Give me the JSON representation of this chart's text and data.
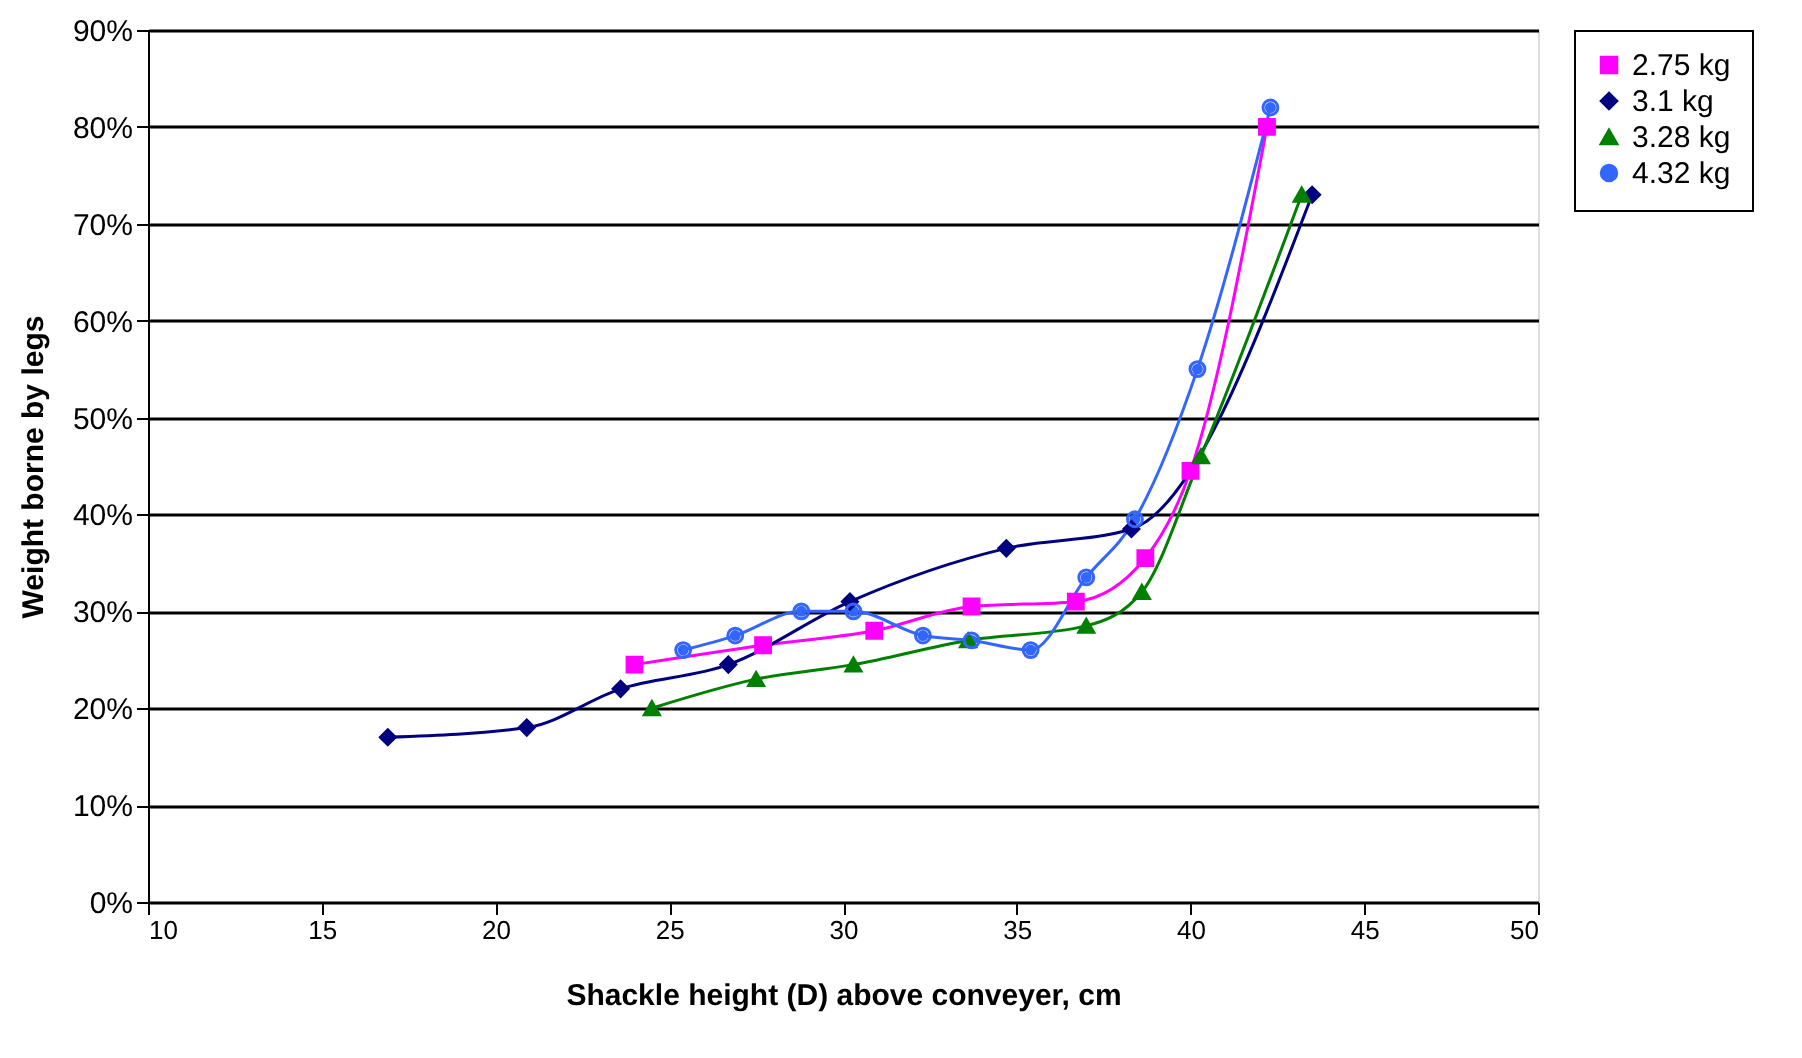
{
  "chart_data": {
    "type": "line",
    "xlabel": "Shackle height (D) above conveyer, cm",
    "ylabel": "Weight borne by legs",
    "xlim": [
      10,
      50
    ],
    "xticks": [
      10,
      15,
      20,
      25,
      30,
      35,
      40,
      45,
      50
    ],
    "ylim": [
      0,
      90
    ],
    "yticks": [
      {
        "value": 0,
        "label": "0%"
      },
      {
        "value": 10,
        "label": "10%"
      },
      {
        "value": 20,
        "label": "20%"
      },
      {
        "value": 30,
        "label": "30%"
      },
      {
        "value": 40,
        "label": "40%"
      },
      {
        "value": 50,
        "label": "50%"
      },
      {
        "value": 60,
        "label": "60%"
      },
      {
        "value": 70,
        "label": "70%"
      },
      {
        "value": 80,
        "label": "80%"
      },
      {
        "value": 90,
        "label": "90%"
      }
    ],
    "grid": "y",
    "legend": "right",
    "line_style": "solid",
    "series": [
      {
        "name": "2.75 kg",
        "color": "#ff00ff",
        "marker": "square",
        "x": [
          24.0,
          27.7,
          30.9,
          33.7,
          36.7,
          38.7,
          40.0,
          42.2
        ],
        "values": [
          24.5,
          26.5,
          28,
          30.5,
          31,
          35.5,
          44.5,
          80
        ]
      },
      {
        "name": "3.1 kg",
        "color": "#000080",
        "marker": "diamond",
        "x": [
          16.9,
          20.9,
          23.6,
          26.7,
          30.2,
          34.7,
          38.3,
          43.5
        ],
        "values": [
          17,
          18,
          22,
          24.5,
          31,
          36.5,
          38.5,
          73
        ]
      },
      {
        "name": "3.28 kg",
        "color": "#008000",
        "marker": "triangle",
        "x": [
          24.5,
          27.5,
          30.3,
          33.6,
          37.0,
          38.6,
          40.3,
          43.2
        ],
        "values": [
          20,
          23,
          24.5,
          27,
          28.5,
          32,
          46,
          73
        ]
      },
      {
        "name": "4.32 kg",
        "color": "#3366ff",
        "marker": "circle",
        "x": [
          25.4,
          26.9,
          28.8,
          30.3,
          32.3,
          33.7,
          35.4,
          37.0,
          38.4,
          40.2,
          42.3
        ],
        "values": [
          26,
          27.5,
          30,
          30,
          27.5,
          27,
          26,
          33.5,
          39.5,
          55,
          82
        ]
      }
    ]
  }
}
